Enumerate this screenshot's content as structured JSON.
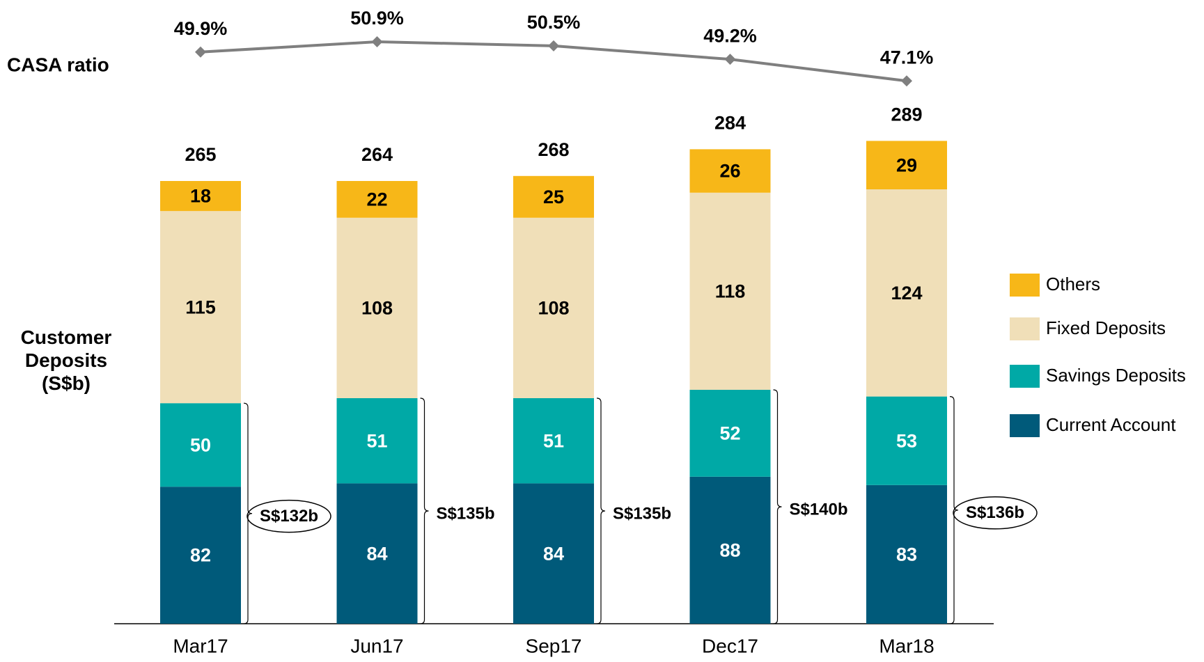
{
  "chart_data": {
    "type": "stacked_bar_line",
    "categories": [
      "Mar17",
      "Jun17",
      "Sep17",
      "Dec17",
      "Mar18"
    ],
    "series": [
      {
        "name": "Current Account",
        "color": "#005a7a",
        "values": [
          82,
          84,
          84,
          88,
          83
        ]
      },
      {
        "name": "Savings Deposits",
        "color": "#00a9a6",
        "values": [
          50,
          51,
          51,
          52,
          53
        ]
      },
      {
        "name": "Fixed Deposits",
        "color": "#f0dfb8",
        "values": [
          115,
          108,
          108,
          118,
          124
        ]
      },
      {
        "name": "Others",
        "color": "#f7b718",
        "values": [
          18,
          22,
          25,
          26,
          29
        ]
      }
    ],
    "totals": [
      265,
      264,
      268,
      284,
      289
    ],
    "casa_deposits": {
      "values": [
        132,
        135,
        135,
        140,
        136
      ],
      "value_labels": [
        "S$132b",
        "S$135b",
        "S$135b",
        "S$140b",
        "S$136b"
      ]
    },
    "line": {
      "name": "CASA ratio",
      "color": "#7f7f7f",
      "values": [
        49.9,
        50.9,
        50.5,
        49.2,
        47.1
      ],
      "value_labels": [
        "49.9%",
        "50.9%",
        "50.5%",
        "49.2%",
        "47.1%"
      ]
    },
    "y_label": "Customer Deposits (S$b)"
  }
}
